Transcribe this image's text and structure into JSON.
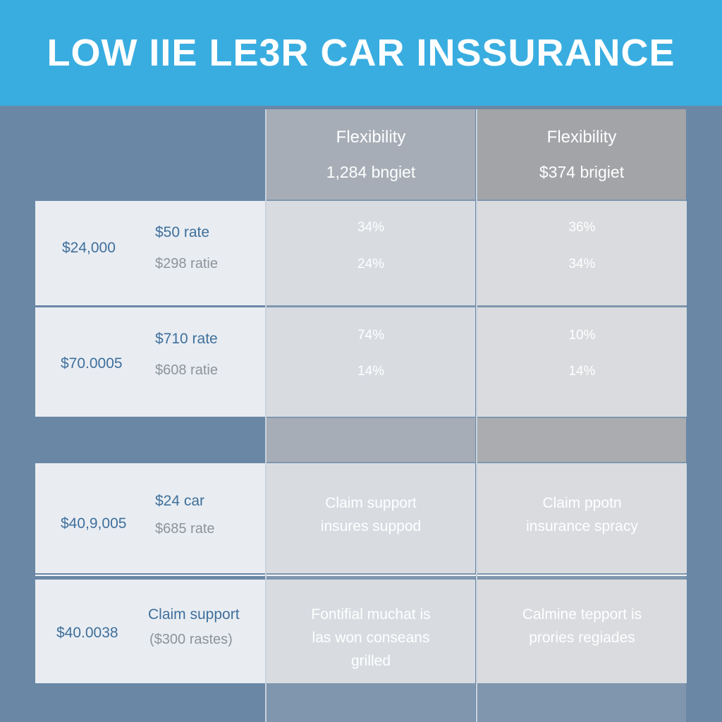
{
  "header": {
    "title": "LOW IIE LE3R CAR INSSURANCE"
  },
  "columns": [
    {
      "title": "Flexibility",
      "subtitle": "1,284 bngiet"
    },
    {
      "title": "Flexibility",
      "subtitle": "$374 brigiet"
    }
  ],
  "rows": [
    {
      "amount": "$24,000",
      "rate_primary": "$50 rate",
      "rate_secondary": "$298 ratie",
      "col1": [
        "34%",
        "24%"
      ],
      "col2": [
        "36%",
        "34%"
      ]
    },
    {
      "amount": "$70.0005",
      "rate_primary": "$710 rate",
      "rate_secondary": "$608 ratie",
      "col1": [
        "74%",
        "14%"
      ],
      "col2": [
        "10%",
        "14%"
      ]
    },
    {
      "amount": "$40,9,005",
      "rate_primary": "$24 car",
      "rate_secondary": "$685 rate",
      "col1": [
        "Claim support",
        "insures suppod"
      ],
      "col2": [
        "Claim ppotn",
        "insurance spracy"
      ]
    },
    {
      "amount": "$40.0038",
      "rate_primary": "Claim support",
      "rate_secondary": "($300 rastes)",
      "col1": [
        "Fontifial muchat is",
        "las won conseans",
        "grilled"
      ],
      "col2": [
        "Calmine tepport is",
        "prories regiades"
      ]
    }
  ],
  "colors": {
    "banner": "#39ade0",
    "background": "#6a87a6",
    "accent_text": "#3f6f9b"
  }
}
